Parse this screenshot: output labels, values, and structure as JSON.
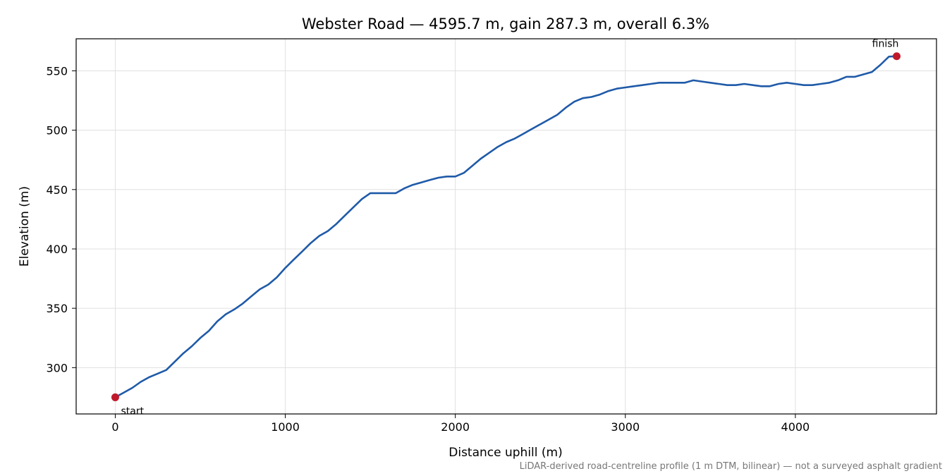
{
  "chart_data": {
    "type": "line",
    "title": "Webster Road — 4595.7 m, gain 287.3 m, overall 6.3%",
    "xlabel": "Distance uphill (m)",
    "ylabel": "Elevation (m)",
    "xlim": [
      -230,
      4830
    ],
    "ylim": [
      261,
      577
    ],
    "xticks": [
      0,
      1000,
      2000,
      3000,
      4000
    ],
    "xtick_labels": [
      "0",
      "1000",
      "2000",
      "3000",
      "4000"
    ],
    "yticks": [
      300,
      350,
      400,
      450,
      500,
      550
    ],
    "ytick_labels": [
      "300",
      "350",
      "400",
      "450",
      "500",
      "550"
    ],
    "grid": true,
    "line_color": "#1f5aa8",
    "marker_color": "#c0192c",
    "footnote": "LiDAR-derived road-centreline profile (1 m DTM, bilinear) — not a surveyed asphalt gradient",
    "series": [
      {
        "x": [
          0,
          50,
          100,
          150,
          200,
          250,
          300,
          350,
          400,
          450,
          500,
          550,
          600,
          650,
          700,
          750,
          800,
          850,
          900,
          950,
          1000,
          1050,
          1100,
          1150,
          1200,
          1250,
          1300,
          1350,
          1400,
          1450,
          1500,
          1550,
          1600,
          1650,
          1700,
          1750,
          1800,
          1850,
          1900,
          1950,
          2000,
          2050,
          2100,
          2150,
          2200,
          2250,
          2300,
          2350,
          2400,
          2450,
          2500,
          2550,
          2600,
          2650,
          2700,
          2750,
          2800,
          2850,
          2900,
          2950,
          3000,
          3050,
          3100,
          3150,
          3200,
          3250,
          3300,
          3350,
          3400,
          3450,
          3500,
          3550,
          3600,
          3650,
          3700,
          3750,
          3800,
          3850,
          3900,
          3950,
          4000,
          4050,
          4100,
          4150,
          4200,
          4250,
          4300,
          4350,
          4400,
          4450,
          4500,
          4550,
          4595.7
        ],
        "y": [
          275,
          279,
          283,
          288,
          292,
          295,
          298,
          305,
          312,
          318,
          325,
          331,
          339,
          345,
          349,
          354,
          360,
          366,
          370,
          376,
          384,
          391,
          398,
          405,
          411,
          415,
          421,
          428,
          435,
          442,
          447,
          447,
          447,
          447,
          451,
          454,
          456,
          458,
          460,
          461,
          461,
          464,
          470,
          476,
          481,
          486,
          490,
          493,
          497,
          501,
          505,
          509,
          513,
          519,
          524,
          527,
          528,
          530,
          533,
          535,
          536,
          537,
          538,
          539,
          540,
          540,
          540,
          540,
          542,
          541,
          540,
          539,
          538,
          538,
          539,
          538,
          537,
          537,
          539,
          540,
          539,
          538,
          538,
          539,
          540,
          542,
          545,
          545,
          547,
          549,
          555,
          562,
          562.3
        ]
      }
    ],
    "annotations": [
      {
        "label": "start",
        "x": 0,
        "y": 275
      },
      {
        "label": "finish",
        "x": 4595.7,
        "y": 562.3
      }
    ]
  }
}
